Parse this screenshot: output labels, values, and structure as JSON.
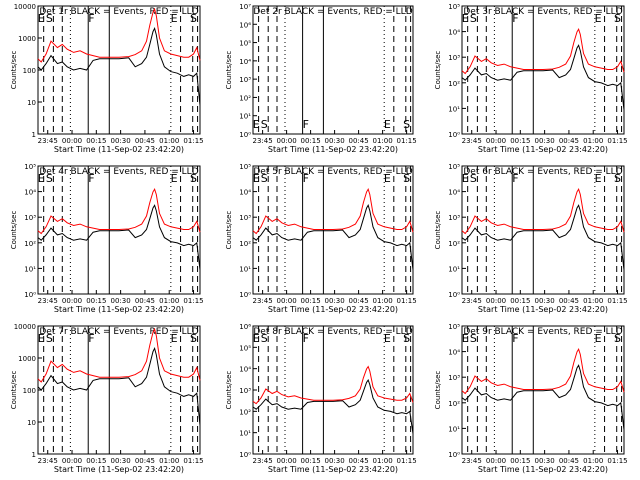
{
  "chart_data": [
    {
      "type": "line",
      "title": "Det 1r BLACK = Events, RED = LLD",
      "xlabel": "Start Time (11-Sep-02 23:42:20)",
      "ylabel": "Counts/sec",
      "yscale": "log",
      "ylim": [
        1,
        10000
      ],
      "ytick_labels": [
        "1",
        "10",
        "100",
        "1000",
        "10000"
      ],
      "xtick_labels": [
        "23:45",
        "00:00",
        "00:15",
        "00:30",
        "00:45",
        "01:00",
        "01:15"
      ],
      "markers": [
        "E",
        "S",
        "F",
        "E",
        "S"
      ],
      "series": [
        {
          "name": "BLACK = Events",
          "color": "#000000"
        },
        {
          "name": "RED = LLD",
          "color": "#ff0000"
        }
      ],
      "shape": "scale"
    },
    {
      "type": "line",
      "title": "Det 2r BLACK = Events, RED = LLD",
      "xlabel": "Start Time (11-Sep-02 23:42:20)",
      "ylabel": "Counts/sec",
      "yscale": "log",
      "ylim": [
        1,
        10000000
      ],
      "ytick_labels": [
        "10⁰",
        "10¹",
        "10²",
        "10³",
        "10⁴",
        "10⁵",
        "10⁶",
        "10⁷"
      ],
      "xtick_labels": [
        "23:45",
        "00:00",
        "00:15",
        "00:30",
        "00:45",
        "01:00",
        "01:15"
      ],
      "markers": [
        "E",
        "S",
        "F",
        "E",
        "S"
      ],
      "series": [],
      "shape": "empty"
    },
    {
      "type": "line",
      "title": "Det 3r BLACK = Events, RED = LLD",
      "xlabel": "Start Time (11-Sep-02 23:42:20)",
      "ylabel": "Counts/sec",
      "yscale": "log",
      "ylim": [
        1,
        100000
      ],
      "ytick_labels": [
        "10⁰",
        "10¹",
        "10²",
        "10³",
        "10⁴",
        "10⁵"
      ],
      "xtick_labels": [
        "23:45",
        "00:00",
        "00:15",
        "00:30",
        "00:45",
        "01:00",
        "01:15"
      ],
      "markers": [
        "E",
        "S",
        "F",
        "E",
        "S"
      ],
      "series": [
        {
          "name": "BLACK = Events",
          "color": "#000000"
        },
        {
          "name": "RED = LLD",
          "color": "#ff0000"
        }
      ],
      "shape": "exp"
    },
    {
      "type": "line",
      "title": "Det 4r BLACK = Events, RED = LLD",
      "xlabel": "Start Time (11-Sep-02 23:42:20)",
      "ylabel": "Counts/sec",
      "yscale": "log",
      "ylim": [
        1,
        100000
      ],
      "ytick_labels": [
        "10⁰",
        "10¹",
        "10²",
        "10³",
        "10⁴",
        "10⁵"
      ],
      "xtick_labels": [
        "23:45",
        "00:00",
        "00:15",
        "00:30",
        "00:45",
        "01:00",
        "01:15"
      ],
      "markers": [
        "E",
        "S",
        "F",
        "E",
        "S"
      ],
      "series": [
        {
          "name": "BLACK = Events",
          "color": "#000000"
        },
        {
          "name": "RED = LLD",
          "color": "#ff0000"
        }
      ],
      "shape": "exp"
    },
    {
      "type": "line",
      "title": "Det 5r BLACK = Events, RED = LLD",
      "xlabel": "Start Time (11-Sep-02 23:42:20)",
      "ylabel": "Counts/sec",
      "yscale": "log",
      "ylim": [
        1,
        100000
      ],
      "ytick_labels": [
        "10⁰",
        "10¹",
        "10²",
        "10³",
        "10⁴",
        "10⁵"
      ],
      "xtick_labels": [
        "23:45",
        "00:00",
        "00:15",
        "00:30",
        "00:45",
        "01:00",
        "01:15"
      ],
      "markers": [
        "E",
        "S",
        "F",
        "E",
        "S"
      ],
      "series": [
        {
          "name": "BLACK = Events",
          "color": "#000000"
        },
        {
          "name": "RED = LLD",
          "color": "#ff0000"
        }
      ],
      "shape": "exp"
    },
    {
      "type": "line",
      "title": "Det 6r BLACK = Events, RED = LLD",
      "xlabel": "Start Time (11-Sep-02 23:42:20)",
      "ylabel": "Counts/sec",
      "yscale": "log",
      "ylim": [
        1,
        100000
      ],
      "ytick_labels": [
        "10⁰",
        "10¹",
        "10²",
        "10³",
        "10⁴",
        "10⁵"
      ],
      "xtick_labels": [
        "23:45",
        "00:00",
        "00:15",
        "00:30",
        "00:45",
        "01:00",
        "01:15"
      ],
      "markers": [
        "E",
        "S",
        "F",
        "E",
        "S"
      ],
      "series": [
        {
          "name": "BLACK = Events",
          "color": "#000000"
        },
        {
          "name": "RED = LLD",
          "color": "#ff0000"
        }
      ],
      "shape": "exp"
    },
    {
      "type": "line",
      "title": "Det 7r BLACK = Events, RED = LLD",
      "xlabel": "Start Time (11-Sep-02 23:42:20)",
      "ylabel": "Counts/sec",
      "yscale": "log",
      "ylim": [
        1,
        10000
      ],
      "ytick_labels": [
        "1",
        "10",
        "100",
        "1000",
        "10000"
      ],
      "xtick_labels": [
        "23:45",
        "00:00",
        "00:15",
        "00:30",
        "00:45",
        "01:00",
        "01:15"
      ],
      "markers": [
        "E",
        "S",
        "F",
        "E",
        "S"
      ],
      "series": [
        {
          "name": "BLACK = Events",
          "color": "#000000"
        },
        {
          "name": "RED = LLD",
          "color": "#ff0000"
        }
      ],
      "shape": "scale"
    },
    {
      "type": "line",
      "title": "Det 8r BLACK = Events, RED = LLD",
      "xlabel": "Start Time (11-Sep-02 23:42:20)",
      "ylabel": "Counts/sec",
      "yscale": "log",
      "ylim": [
        1,
        1000000
      ],
      "ytick_labels": [
        "10⁰",
        "10¹",
        "10²",
        "10³",
        "10⁴",
        "10⁵",
        "10⁶"
      ],
      "xtick_labels": [
        "23:45",
        "00:00",
        "00:15",
        "00:30",
        "00:45",
        "01:00",
        "01:15"
      ],
      "markers": [
        "E",
        "S",
        "F",
        "E",
        "S"
      ],
      "series": [
        {
          "name": "BLACK = Events",
          "color": "#000000"
        },
        {
          "name": "RED = LLD",
          "color": "#ff0000"
        }
      ],
      "shape": "exp"
    },
    {
      "type": "line",
      "title": "Det 9r BLACK = Events, RED = LLD",
      "xlabel": "Start Time (11-Sep-02 23:42:20)",
      "ylabel": "Counts/sec",
      "yscale": "log",
      "ylim": [
        1,
        100000
      ],
      "ytick_labels": [
        "10⁰",
        "10¹",
        "10²",
        "10³",
        "10⁴",
        "10⁵"
      ],
      "xtick_labels": [
        "23:45",
        "00:00",
        "00:15",
        "00:30",
        "00:45",
        "01:00",
        "01:15"
      ],
      "markers": [
        "E",
        "S",
        "F",
        "E",
        "S"
      ],
      "series": [
        {
          "name": "BLACK = Events",
          "color": "#000000"
        },
        {
          "name": "RED = LLD",
          "color": "#ff0000"
        }
      ],
      "shape": "exp"
    }
  ]
}
